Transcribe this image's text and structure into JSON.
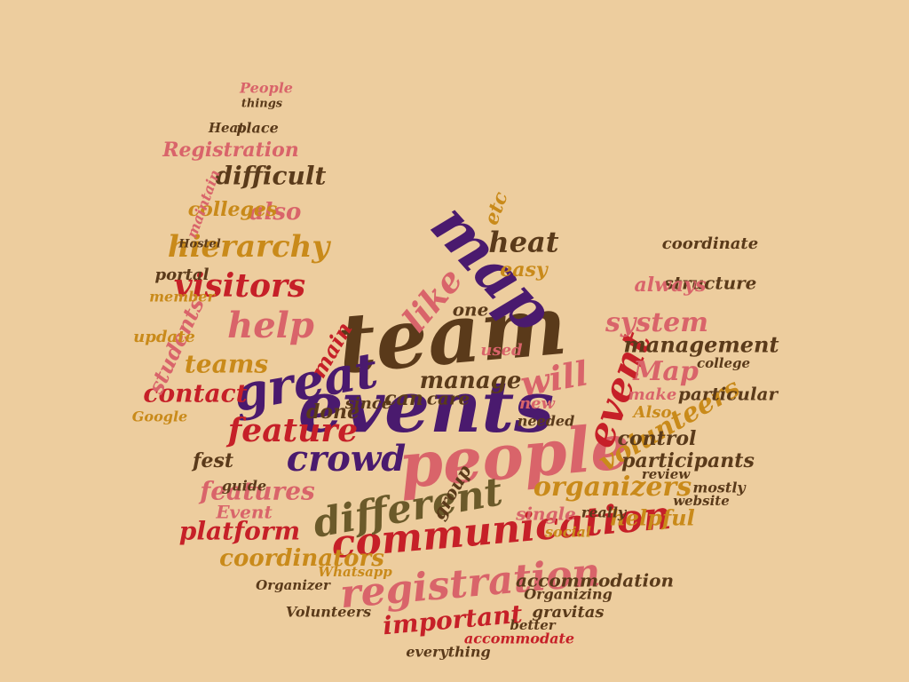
{
  "words": [
    "team",
    "events",
    "people",
    "map",
    "great",
    "communication",
    "registration",
    "different",
    "crowd",
    "feature",
    "help",
    "visitors",
    "hierarchy",
    "event",
    "volunteers",
    "organizers",
    "system",
    "management",
    "Map",
    "will",
    "heat",
    "like",
    "easy",
    "manage",
    "difficult",
    "also",
    "colleges",
    "Registration",
    "teams",
    "contact",
    "students",
    "fest",
    "features",
    "platform",
    "coordinators",
    "done",
    "can",
    "care",
    "participants",
    "helpful",
    "important",
    "accommodation",
    "gravitas",
    "Event",
    "structure",
    "always",
    "coordinate",
    "particular",
    "control",
    "make",
    "Also",
    "college",
    "Organizing",
    "Whatsapp",
    "Volunteers",
    "accommodate",
    "everything",
    "better",
    "single",
    "social",
    "group",
    "new",
    "needed",
    "since",
    "main",
    "used",
    "one",
    "etc",
    "Google",
    "guide",
    "update",
    "member",
    "portal",
    "Hostel",
    "People",
    "things",
    "place",
    "Heat",
    "maintain",
    "website",
    "review",
    "mostly",
    "Organizer",
    "really"
  ]
}
